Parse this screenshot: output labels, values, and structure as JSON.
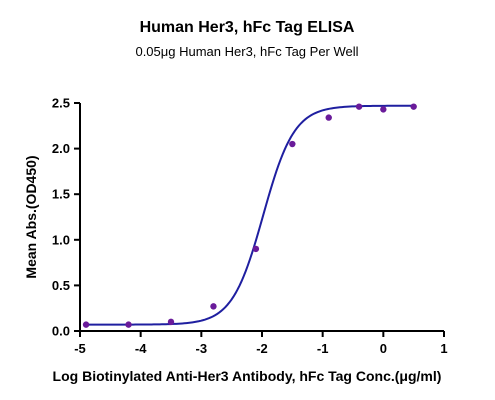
{
  "chart_data": {
    "type": "scatter",
    "title": "Human Her3, hFc Tag ELISA",
    "subtitle": "0.05μg Human Her3, hFc Tag Per Well",
    "xlabel": "Log Biotinylated Anti-Her3 Antibody, hFc Tag Conc.(μg/ml)",
    "ylabel": "Mean Abs.(OD450)",
    "xlim": [
      -5,
      1
    ],
    "ylim": [
      0,
      2.5
    ],
    "xticks": [
      -5,
      -4,
      -3,
      -2,
      -1,
      0,
      1
    ],
    "xtick_labels": [
      "-5",
      "-4",
      "-3",
      "-2",
      "-1",
      "0",
      "1"
    ],
    "yticks": [
      0,
      0.5,
      1.0,
      1.5,
      2.0,
      2.5
    ],
    "ytick_labels": [
      "0.0",
      "0.5",
      "1.0",
      "1.5",
      "2.0",
      "2.5"
    ],
    "series": [
      {
        "points": [
          {
            "x": -4.9,
            "y": 0.07
          },
          {
            "x": -4.2,
            "y": 0.07
          },
          {
            "x": -3.5,
            "y": 0.1
          },
          {
            "x": -2.8,
            "y": 0.27
          },
          {
            "x": -2.1,
            "y": 0.9
          },
          {
            "x": -1.5,
            "y": 2.05
          },
          {
            "x": -0.9,
            "y": 2.34
          },
          {
            "x": -0.4,
            "y": 2.46
          },
          {
            "x": 0.0,
            "y": 2.43
          },
          {
            "x": 0.5,
            "y": 2.46
          }
        ],
        "fit": {
          "model": "4PL",
          "bottom": 0.07,
          "top": 2.47,
          "logEC50": -1.98,
          "hill": 1.7
        }
      }
    ],
    "grid": false,
    "legend": "none",
    "colors": {
      "curve": "#1f1fa0",
      "points": "#6a1b9a",
      "axes": "#000000"
    }
  }
}
